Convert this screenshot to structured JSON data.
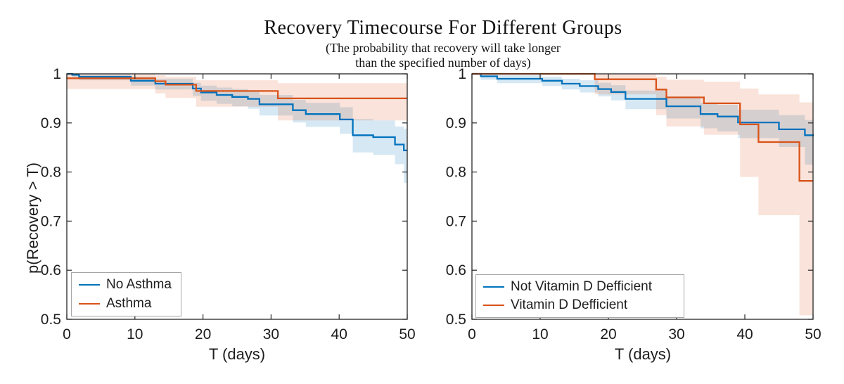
{
  "title": "Recovery Timecourse For Different Groups",
  "subtitle_line1": "(The probability that recovery will take longer",
  "subtitle_line2": "than the specified number of days)",
  "colors": {
    "series_blue": "#0072BD",
    "series_orange": "#D95319",
    "ci_band_opacity": 0.16,
    "axis": "#262626",
    "tick_text": "#1d1d1d",
    "legend_border": "#a6a6a6",
    "background": "#ffffff"
  },
  "chart_data": [
    {
      "type": "line",
      "subtype": "kaplan-meier-step-with-ci",
      "panel": "left",
      "xlabel": "T (days)",
      "ylabel": "p(Recovery > T)",
      "xlim": [
        0,
        50
      ],
      "ylim": [
        0.5,
        1.0
      ],
      "xtick_values": [
        0,
        10,
        20,
        30,
        40,
        50
      ],
      "xtick_labels": [
        "0",
        "10",
        "20",
        "30",
        "40",
        "50"
      ],
      "ytick_values": [
        0.5,
        0.6,
        0.7,
        0.8,
        0.9,
        1
      ],
      "ytick_labels": [
        "0.5",
        "0.6",
        "0.7",
        "0.8",
        "0.9",
        "1"
      ],
      "grid": false,
      "box": true,
      "legend_position": "bottom-left",
      "points_format": [
        "day",
        "p",
        "ci_lower",
        "ci_upper"
      ],
      "series": [
        {
          "name": "No Asthma",
          "color": "#0072BD",
          "points": [
            [
              0,
              1.0,
              1.0,
              1.0
            ],
            [
              0.8,
              0.998,
              0.993,
              1.0
            ],
            [
              1.8,
              0.994,
              0.987,
              0.999
            ],
            [
              9.4,
              0.986,
              0.976,
              0.994
            ],
            [
              13,
              0.98,
              0.968,
              0.99
            ],
            [
              18.5,
              0.97,
              0.955,
              0.982
            ],
            [
              19.7,
              0.962,
              0.945,
              0.976
            ],
            [
              22,
              0.957,
              0.939,
              0.972
            ],
            [
              24.3,
              0.953,
              0.934,
              0.969
            ],
            [
              26.6,
              0.949,
              0.929,
              0.966
            ],
            [
              28.3,
              0.938,
              0.915,
              0.957
            ],
            [
              33.2,
              0.926,
              0.901,
              0.947
            ],
            [
              35.1,
              0.918,
              0.892,
              0.941
            ],
            [
              40.1,
              0.907,
              0.878,
              0.932
            ],
            [
              42,
              0.875,
              0.84,
              0.908
            ],
            [
              45,
              0.871,
              0.835,
              0.905
            ],
            [
              48.2,
              0.856,
              0.816,
              0.893
            ],
            [
              49.5,
              0.844,
              0.778,
              0.888
            ],
            [
              50,
              0.844,
              0.778,
              0.888
            ]
          ]
        },
        {
          "name": "Asthma",
          "color": "#D95319",
          "points": [
            [
              0,
              0.991,
              0.969,
              1.0
            ],
            [
              13,
              0.985,
              0.96,
              0.997
            ],
            [
              14.5,
              0.978,
              0.951,
              0.994
            ],
            [
              19,
              0.965,
              0.933,
              0.987
            ],
            [
              31,
              0.95,
              0.905,
              0.981
            ],
            [
              50,
              0.95,
              0.905,
              0.981
            ]
          ]
        }
      ]
    },
    {
      "type": "line",
      "subtype": "kaplan-meier-step-with-ci",
      "panel": "right",
      "xlabel": "T (days)",
      "ylabel": "",
      "xlim": [
        0,
        50
      ],
      "ylim": [
        0.5,
        1.0
      ],
      "xtick_values": [
        0,
        10,
        20,
        30,
        40,
        50
      ],
      "xtick_labels": [
        "0",
        "10",
        "20",
        "30",
        "40",
        "50"
      ],
      "ytick_values": [
        0.5,
        0.6,
        0.7,
        0.8,
        0.9,
        1
      ],
      "ytick_labels": [
        "0.5",
        "0.6",
        "0.7",
        "0.8",
        "0.9",
        "1"
      ],
      "grid": false,
      "box": true,
      "legend_position": "bottom-left",
      "points_format": [
        "day",
        "p",
        "ci_lower",
        "ci_upper"
      ],
      "series": [
        {
          "name": "Not Vitamin D Defficient",
          "color": "#0072BD",
          "points": [
            [
              0,
              1.0,
              1.0,
              1.0
            ],
            [
              1.3,
              0.995,
              0.988,
              1.0
            ],
            [
              3.7,
              0.99,
              0.981,
              0.997
            ],
            [
              10.3,
              0.986,
              0.975,
              0.994
            ],
            [
              13.2,
              0.98,
              0.968,
              0.99
            ],
            [
              15.8,
              0.975,
              0.962,
              0.987
            ],
            [
              18.5,
              0.969,
              0.954,
              0.982
            ],
            [
              20.4,
              0.963,
              0.946,
              0.977
            ],
            [
              22.5,
              0.949,
              0.928,
              0.966
            ],
            [
              28.5,
              0.934,
              0.909,
              0.954
            ],
            [
              33.5,
              0.918,
              0.889,
              0.941
            ],
            [
              36,
              0.913,
              0.883,
              0.937
            ],
            [
              39,
              0.901,
              0.869,
              0.927
            ],
            [
              45,
              0.887,
              0.851,
              0.916
            ],
            [
              48.8,
              0.875,
              0.815,
              0.906
            ],
            [
              50,
              0.873,
              0.812,
              0.905
            ]
          ]
        },
        {
          "name": "Vitamin D Defficient",
          "color": "#D95319",
          "points": [
            [
              0,
              1.0,
              1.0,
              1.0
            ],
            [
              18,
              0.989,
              0.958,
              1.0
            ],
            [
              27,
              0.968,
              0.916,
              0.994
            ],
            [
              28.5,
              0.952,
              0.893,
              0.988
            ],
            [
              34,
              0.94,
              0.876,
              0.984
            ],
            [
              39.3,
              0.897,
              0.79,
              0.97
            ],
            [
              42,
              0.861,
              0.712,
              0.958
            ],
            [
              48,
              0.782,
              0.508,
              0.942
            ],
            [
              50,
              0.782,
              0.508,
              0.942
            ]
          ]
        }
      ]
    }
  ]
}
